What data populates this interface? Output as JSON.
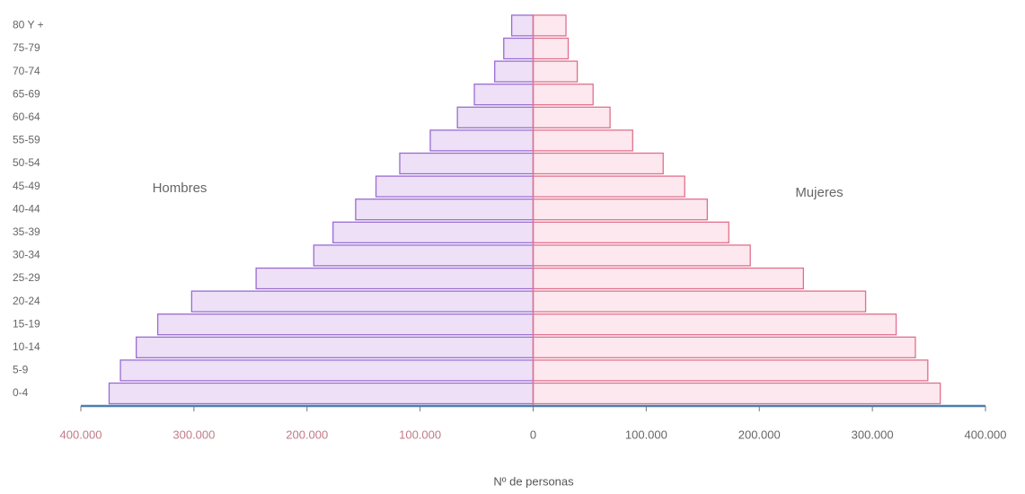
{
  "chart_data": {
    "type": "pyramid",
    "categories": [
      "0-4",
      "5-9",
      "10-14",
      "15-19",
      "20-24",
      "25-29",
      "30-34",
      "35-39",
      "40-44",
      "45-49",
      "50-54",
      "55-59",
      "60-64",
      "65-69",
      "70-74",
      "75-79",
      "80 Y +"
    ],
    "series": [
      {
        "name": "Hombres",
        "color": "#9a6cd0",
        "values": [
          375000,
          365000,
          351000,
          332000,
          302000,
          245000,
          194000,
          177000,
          157000,
          139000,
          118000,
          91000,
          67000,
          52000,
          34000,
          26000,
          19000
        ]
      },
      {
        "name": "Mujeres",
        "color": "#e0708e",
        "values": [
          360000,
          349000,
          338000,
          321000,
          294000,
          239000,
          192000,
          173000,
          154000,
          134000,
          115000,
          88000,
          68000,
          53000,
          39000,
          31000,
          29000
        ]
      }
    ],
    "xlabel": "Nº de personas",
    "xlim": [
      -400000,
      400000
    ],
    "xticks": [
      {
        "value": -400000,
        "label": "400.000"
      },
      {
        "value": -300000,
        "label": "300.000"
      },
      {
        "value": -200000,
        "label": "200.000"
      },
      {
        "value": -100000,
        "label": "100.000"
      },
      0,
      {
        "value": 100000,
        "label": "100.000"
      },
      {
        "value": 200000,
        "label": "200.000"
      },
      {
        "value": 300000,
        "label": "300.000"
      },
      {
        "value": 400000,
        "label": "400.000"
      }
    ]
  }
}
